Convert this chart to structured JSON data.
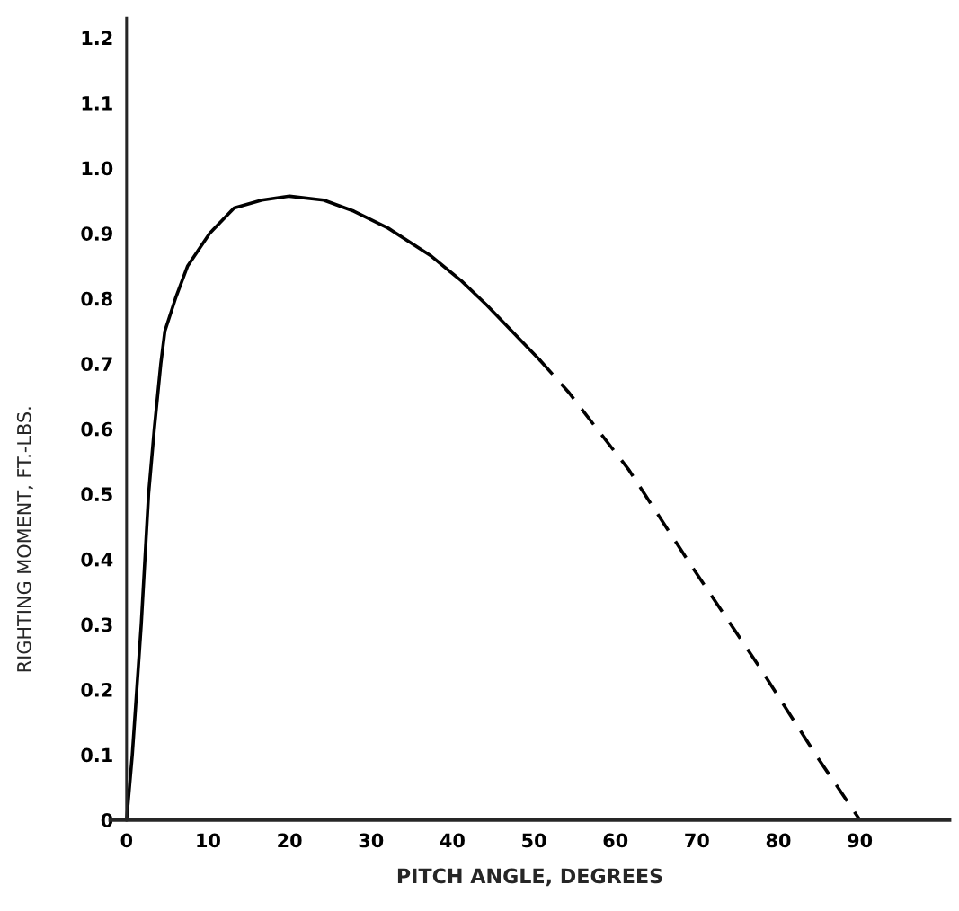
{
  "chart_data": {
    "type": "line",
    "xlabel": "PITCH ANGLE, DEGREES",
    "ylabel": "RIGHTING MOMENT, FT.-LBS.",
    "xlim": [
      -2,
      101
    ],
    "ylim": [
      0,
      1.23
    ],
    "xticks": [
      0,
      10,
      20,
      30,
      40,
      50,
      60,
      70,
      80,
      90
    ],
    "yticks": [
      0,
      0.1,
      0.2,
      0.3,
      0.4,
      0.5,
      0.6,
      0.7,
      0.8,
      0.9,
      {
        "value": 1.0,
        "label": "1.0"
      },
      1.1,
      1.2
    ],
    "grid": false,
    "legend": false,
    "marker": "none",
    "series": [
      {
        "color": "#000000",
        "line_style": "solid",
        "x": [
          0,
          0.7,
          1.8,
          2.7,
          3.4,
          4.2,
          4.7,
          6.0,
          7.5,
          10.2,
          13.2,
          16.6,
          20,
          24.2,
          27.9,
          32.1,
          37.4,
          41.1,
          44.2,
          50.7
        ],
        "values": [
          0,
          0.1,
          0.3,
          0.5,
          0.6,
          0.7,
          0.75,
          0.8,
          0.85,
          0.9,
          0.939,
          0.951,
          0.957,
          0.951,
          0.934,
          0.908,
          0.865,
          0.827,
          0.79,
          0.706
        ]
      },
      {
        "color": "#000000",
        "line_style": "dashed",
        "x": [
          50.7,
          54.2,
          61.6,
          69.1,
          77.5,
          84.7,
          90
        ],
        "values": [
          0.706,
          0.657,
          0.538,
          0.394,
          0.238,
          0.098,
          0
        ]
      }
    ]
  }
}
